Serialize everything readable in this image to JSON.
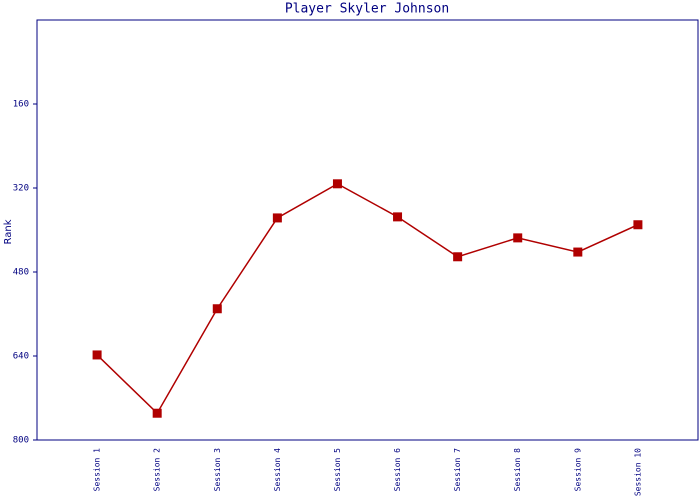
{
  "chart_data": {
    "type": "line",
    "title": "Player Skyler Johnson",
    "y_label": "Rank",
    "categories": [
      "Session 1",
      "Session 2",
      "Session 3",
      "Session 4",
      "Session 5",
      "Session 6",
      "Session 7",
      "Session 8",
      "Session 9",
      "Session 10"
    ],
    "series": [
      {
        "name": "Rank",
        "color": "#b00000",
        "values": [
          638,
          749,
          550,
          377,
          312,
          375,
          451,
          415,
          442,
          390
        ]
      }
    ],
    "ylim": [
      800,
      0
    ],
    "yticks": [
      160,
      320,
      480,
      640,
      800
    ],
    "grid": false
  }
}
